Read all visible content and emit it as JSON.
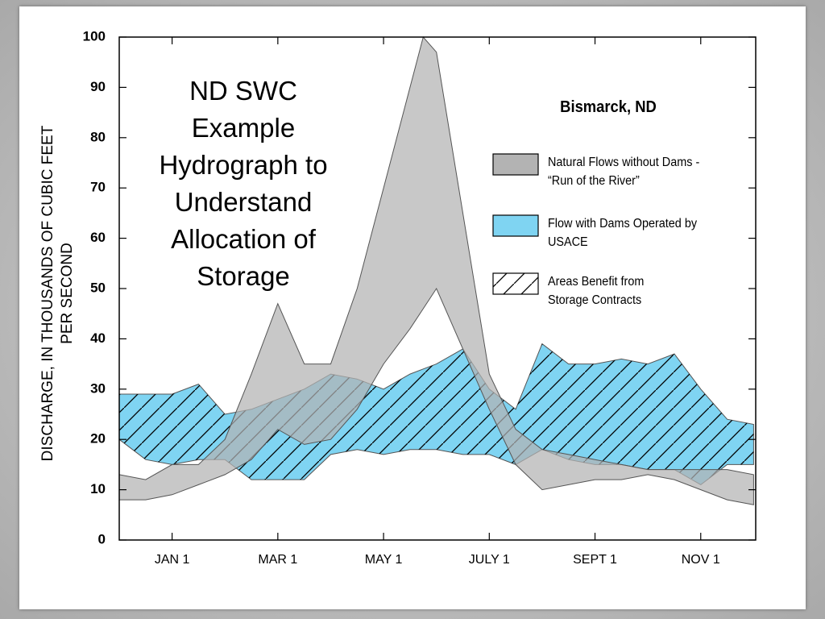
{
  "chart_data": {
    "type": "band",
    "title": "ND SWC Example Hydrograph to Understand Allocation of Storage",
    "subtitle": "Bismarck, ND",
    "y_label": "DISCHARGE, IN THOUSANDS OF CUBIC FEET PER SECOND",
    "x": [
      0,
      0.5,
      1,
      1.5,
      2,
      2.5,
      3,
      3.5,
      4,
      4.5,
      5,
      5.5,
      5.75,
      6,
      6.5,
      7,
      7.5,
      8,
      8.5,
      9,
      9.5,
      10,
      10.5,
      11,
      11.5,
      12
    ],
    "xlim": [
      0,
      12.04
    ],
    "xticks": [
      {
        "value": 1,
        "label": "JAN 1"
      },
      {
        "value": 3,
        "label": "MAR 1"
      },
      {
        "value": 5,
        "label": "MAY 1"
      },
      {
        "value": 7,
        "label": "JULY 1"
      },
      {
        "value": 9,
        "label": "SEPT 1"
      },
      {
        "value": 11,
        "label": "NOV 1"
      }
    ],
    "ylim": [
      0,
      100
    ],
    "yticks": [
      0,
      10,
      20,
      30,
      40,
      50,
      60,
      70,
      80,
      90,
      100
    ],
    "series": [
      {
        "name": "Natural Flows without Dams - “Run of the River”",
        "color": "#b3b3b3",
        "high": [
          13,
          12,
          15,
          15,
          20,
          33,
          47,
          35,
          35,
          50,
          70,
          90,
          100,
          97,
          65,
          33,
          22,
          18,
          17,
          16,
          15,
          14,
          14,
          14,
          14,
          13
        ],
        "low": [
          8,
          8,
          9,
          11,
          13,
          16,
          22,
          19,
          20,
          26,
          35,
          42,
          46,
          50,
          38,
          26,
          15,
          10,
          11,
          12,
          12,
          13,
          12,
          10,
          8,
          7
        ]
      },
      {
        "name": "Flow with Dams Operated by USACE",
        "color": "#7fd4f2",
        "high": [
          29,
          29,
          29,
          31,
          25,
          26,
          28,
          30,
          33,
          32,
          30,
          33,
          34,
          35,
          38,
          30,
          26,
          39,
          35,
          35,
          36,
          35,
          37,
          30,
          24,
          23
        ],
        "low": [
          20,
          16,
          15,
          16,
          16,
          12,
          12,
          12,
          17,
          18,
          17,
          18,
          18,
          18,
          17,
          17,
          15,
          18,
          16,
          15,
          15,
          14,
          14,
          11,
          15,
          15
        ]
      }
    ],
    "hatch_legend": "Areas Benefit from Storage Contracts"
  }
}
